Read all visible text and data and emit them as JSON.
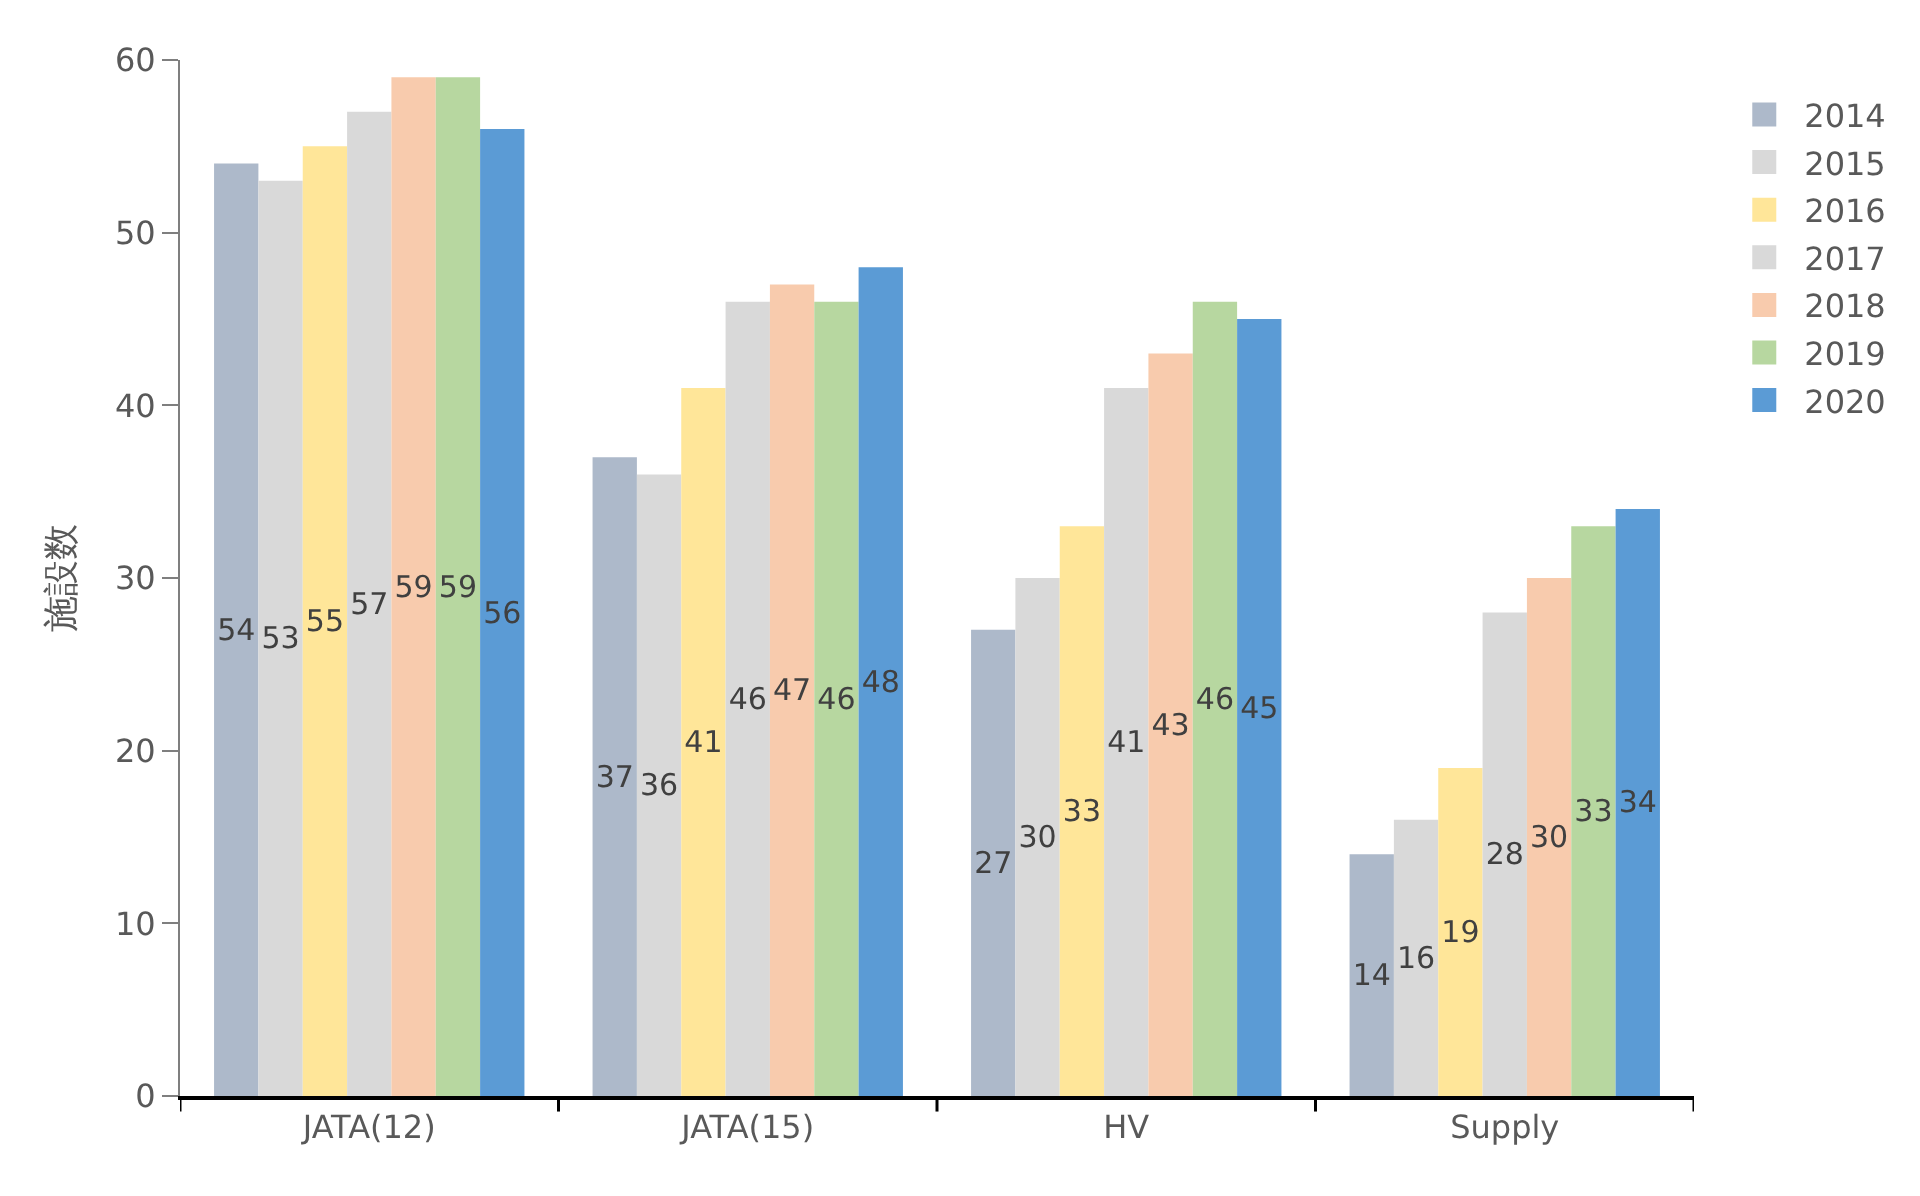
{
  "chart_data": {
    "type": "bar",
    "ylabel": "施設数",
    "categories": [
      "JATA(12)",
      "JATA(15)",
      "HV",
      "Supply"
    ],
    "series": [
      {
        "name": "2014",
        "color": "#adb9ca",
        "values": [
          54,
          37,
          27,
          14
        ]
      },
      {
        "name": "2015",
        "color": "#d9d9d9",
        "values": [
          53,
          36,
          30,
          16
        ]
      },
      {
        "name": "2016",
        "color": "#ffe699",
        "values": [
          55,
          41,
          33,
          19
        ]
      },
      {
        "name": "2017",
        "color": "#d9d9d9",
        "values": [
          57,
          46,
          41,
          28
        ]
      },
      {
        "name": "2018",
        "color": "#f8cbad",
        "values": [
          59,
          47,
          43,
          30
        ]
      },
      {
        "name": "2019",
        "color": "#b7d7a0",
        "values": [
          59,
          46,
          46,
          33
        ]
      },
      {
        "name": "2020",
        "color": "#5b9bd5",
        "values": [
          56,
          48,
          45,
          34
        ]
      }
    ],
    "ylim": [
      0,
      60
    ],
    "yticks": [
      0,
      10,
      20,
      30,
      40,
      50,
      60
    ],
    "legend": "right",
    "data_labels": true
  }
}
